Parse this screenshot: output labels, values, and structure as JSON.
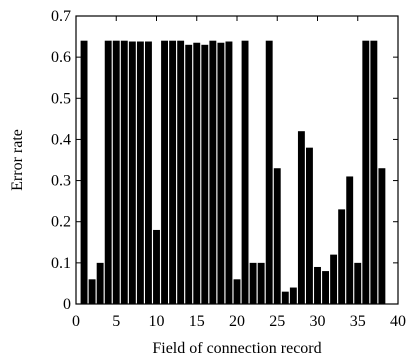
{
  "chart_data": {
    "type": "bar",
    "title": "",
    "xlabel": "Field of connection record",
    "ylabel": "Error rate",
    "xlim": [
      0,
      40
    ],
    "ylim": [
      0,
      0.7
    ],
    "xticks": [
      0,
      5,
      10,
      15,
      20,
      25,
      30,
      35,
      40
    ],
    "yticks": [
      0,
      0.1,
      0.2,
      0.3,
      0.4,
      0.5,
      0.6,
      0.7
    ],
    "xtick_labels": [
      "0",
      "5",
      "10",
      "15",
      "20",
      "25",
      "30",
      "35",
      "40"
    ],
    "ytick_labels": [
      "0",
      "0.1",
      "0.2",
      "0.3",
      "0.4",
      "0.5",
      "0.6",
      "0.7"
    ],
    "grid": false,
    "bar_color": "#000000",
    "x": [
      1,
      2,
      3,
      4,
      5,
      6,
      7,
      8,
      9,
      10,
      11,
      12,
      13,
      14,
      15,
      16,
      17,
      18,
      19,
      20,
      21,
      22,
      23,
      24,
      25,
      26,
      27,
      28,
      29,
      30,
      31,
      32,
      33,
      34,
      35,
      36,
      37,
      38
    ],
    "values": [
      0.64,
      0.06,
      0.1,
      0.64,
      0.64,
      0.64,
      0.638,
      0.638,
      0.638,
      0.18,
      0.64,
      0.64,
      0.64,
      0.63,
      0.635,
      0.63,
      0.64,
      0.635,
      0.638,
      0.06,
      0.64,
      0.1,
      0.1,
      0.64,
      0.33,
      0.03,
      0.04,
      0.42,
      0.38,
      0.09,
      0.08,
      0.12,
      0.23,
      0.31,
      0.1,
      0.64,
      0.64,
      0.33
    ]
  }
}
